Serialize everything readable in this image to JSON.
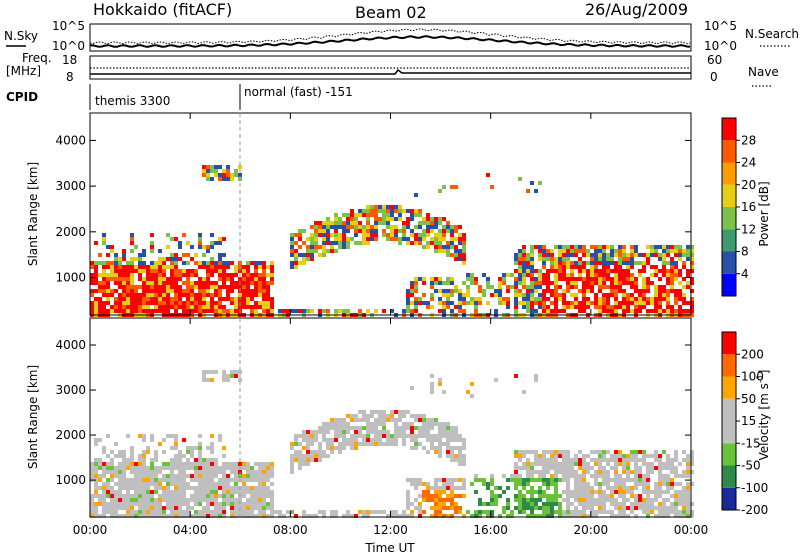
{
  "header": {
    "station": "Hokkaido (fitACF)",
    "beam": "Beam 02",
    "date": "26/Aug/2009"
  },
  "noise_panel": {
    "left_label": "N.Sky",
    "right_label": "N.Search",
    "left_ticks": [
      "10^5",
      "10^0"
    ],
    "right_ticks": [
      "10^5",
      "10^0"
    ]
  },
  "freq_panel": {
    "left_label_line1": "Freq.",
    "left_label_line2": "[MHz]",
    "left_ticks": [
      "18",
      "8"
    ],
    "right_label": "Nave",
    "right_ticks": [
      "60",
      "0"
    ]
  },
  "cpid_panel": {
    "label": "CPID",
    "modes": [
      "themis 3300",
      "normal (fast) -151"
    ],
    "mode_change_time": "06:00"
  },
  "colors": {
    "power_scale": [
      "#0000ff",
      "#2a4fa8",
      "#3f9a6e",
      "#7cc24a",
      "#e6cf12",
      "#ff9a00",
      "#ff5a00",
      "#ff0000"
    ],
    "velocity_scale": [
      "#1a2a9a",
      "#2f8a4a",
      "#69c23a",
      "#bfbfbf",
      "#bfbfbf",
      "#ffa500",
      "#ff6a00",
      "#ff0000"
    ]
  },
  "chart_data": [
    {
      "type": "heatmap",
      "title": "Power",
      "xlabel": "Time UT",
      "ylabel": "Slant Range [km]",
      "x_ticks": [
        "00:00",
        "04:00",
        "08:00",
        "12:00",
        "16:00",
        "20:00",
        "00:00"
      ],
      "y_ticks": [
        "1000",
        "2000",
        "3000",
        "4000"
      ],
      "ylim": [
        180,
        4600
      ],
      "colorbar_label": "Power [dB]",
      "colorbar_ticks": [
        "4",
        "8",
        "12",
        "16",
        "20",
        "24",
        "28"
      ]
    },
    {
      "type": "heatmap",
      "title": "Velocity",
      "xlabel": "Time UT",
      "ylabel": "Slant Range [km]",
      "x_ticks": [
        "00:00",
        "04:00",
        "08:00",
        "12:00",
        "16:00",
        "20:00",
        "00:00"
      ],
      "y_ticks": [
        "1000",
        "2000",
        "3000",
        "4000"
      ],
      "ylim": [
        180,
        4600
      ],
      "colorbar_label": "Velocity [m s^-1]",
      "colorbar_ticks": [
        "200",
        "100",
        "50",
        "15",
        "-15",
        "-50",
        "-100",
        "-200"
      ]
    }
  ],
  "x_axis_title": "Time UT"
}
